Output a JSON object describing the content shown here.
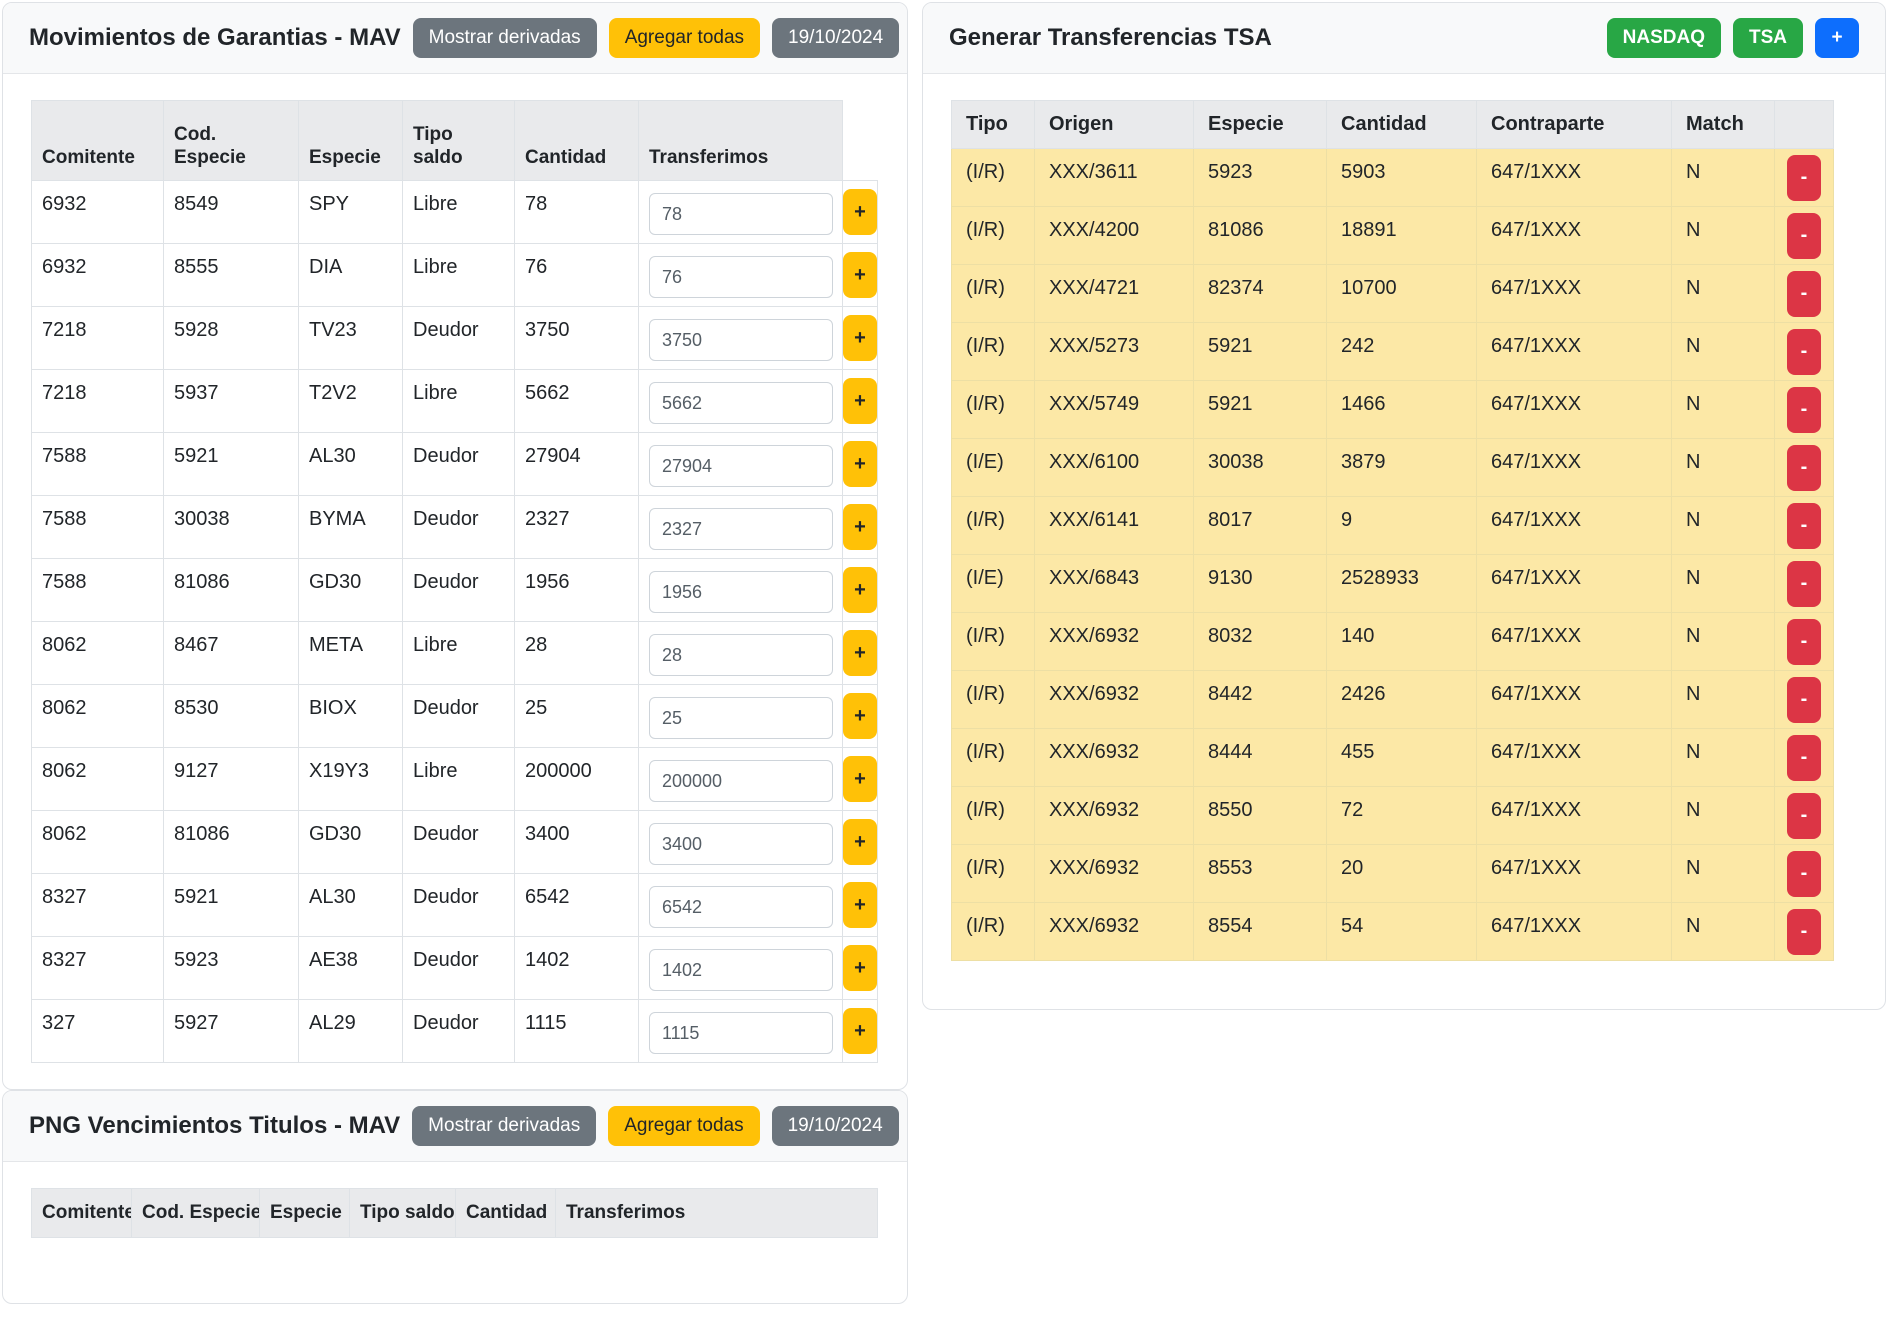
{
  "left_panel": {
    "title": "Movimientos de Garantias - MAV",
    "buttons": {
      "mostrar_derivadas": "Mostrar derivadas",
      "agregar_todas": "Agregar todas",
      "date": "19/10/2024"
    },
    "table": {
      "headers": [
        "Comitente",
        "Cod. Especie",
        "Especie",
        "Tipo saldo",
        "Cantidad",
        "Transferimos"
      ],
      "add_label": "+",
      "rows": [
        {
          "comitente": "6932",
          "cod_especie": "8549",
          "especie": "SPY",
          "tipo_saldo": "Libre",
          "cantidad": "78",
          "transferimos": "78"
        },
        {
          "comitente": "6932",
          "cod_especie": "8555",
          "especie": "DIA",
          "tipo_saldo": "Libre",
          "cantidad": "76",
          "transferimos": "76"
        },
        {
          "comitente": "7218",
          "cod_especie": "5928",
          "especie": "TV23",
          "tipo_saldo": "Deudor",
          "cantidad": "3750",
          "transferimos": "3750"
        },
        {
          "comitente": "7218",
          "cod_especie": "5937",
          "especie": "T2V2",
          "tipo_saldo": "Libre",
          "cantidad": "5662",
          "transferimos": "5662"
        },
        {
          "comitente": "7588",
          "cod_especie": "5921",
          "especie": "AL30",
          "tipo_saldo": "Deudor",
          "cantidad": "27904",
          "transferimos": "27904"
        },
        {
          "comitente": "7588",
          "cod_especie": "30038",
          "especie": "BYMA",
          "tipo_saldo": "Deudor",
          "cantidad": "2327",
          "transferimos": "2327"
        },
        {
          "comitente": "7588",
          "cod_especie": "81086",
          "especie": "GD30",
          "tipo_saldo": "Deudor",
          "cantidad": "1956",
          "transferimos": "1956"
        },
        {
          "comitente": "8062",
          "cod_especie": "8467",
          "especie": "META",
          "tipo_saldo": "Libre",
          "cantidad": "28",
          "transferimos": "28"
        },
        {
          "comitente": "8062",
          "cod_especie": "8530",
          "especie": "BIOX",
          "tipo_saldo": "Deudor",
          "cantidad": "25",
          "transferimos": "25"
        },
        {
          "comitente": "8062",
          "cod_especie": "9127",
          "especie": "X19Y3",
          "tipo_saldo": "Libre",
          "cantidad": "200000",
          "transferimos": "200000"
        },
        {
          "comitente": "8062",
          "cod_especie": "81086",
          "especie": "GD30",
          "tipo_saldo": "Deudor",
          "cantidad": "3400",
          "transferimos": "3400"
        },
        {
          "comitente": "8327",
          "cod_especie": "5921",
          "especie": "AL30",
          "tipo_saldo": "Deudor",
          "cantidad": "6542",
          "transferimos": "6542"
        },
        {
          "comitente": "8327",
          "cod_especie": "5923",
          "especie": "AE38",
          "tipo_saldo": "Deudor",
          "cantidad": "1402",
          "transferimos": "1402"
        },
        {
          "comitente": "327",
          "cod_especie": "5927",
          "especie": "AL29",
          "tipo_saldo": "Deudor",
          "cantidad": "1115",
          "transferimos": "1115"
        }
      ]
    }
  },
  "bottom_panel": {
    "title": "PNG Vencimientos Titulos - MAV",
    "buttons": {
      "mostrar_derivadas": "Mostrar derivadas",
      "agregar_todas": "Agregar todas",
      "date": "19/10/2024"
    },
    "table": {
      "headers": [
        "Comitente",
        "Cod. Especie",
        "Especie",
        "Tipo saldo",
        "Cantidad",
        "Transferimos"
      ],
      "rows": []
    }
  },
  "right_panel": {
    "title": "Generar Transferencias TSA",
    "buttons": {
      "nasdaq": "NASDAQ",
      "tsa": "TSA",
      "add": "+"
    },
    "table": {
      "headers": [
        "Tipo",
        "Origen",
        "Especie",
        "Cantidad",
        "Contraparte",
        "Match"
      ],
      "remove_label": "-",
      "rows": [
        {
          "tipo": "(I/R)",
          "origen": "XXX/3611",
          "especie": "5923",
          "cantidad": "5903",
          "contraparte": "647/1XXX",
          "match": "N"
        },
        {
          "tipo": "(I/R)",
          "origen": "XXX/4200",
          "especie": "81086",
          "cantidad": "18891",
          "contraparte": "647/1XXX",
          "match": "N"
        },
        {
          "tipo": "(I/R)",
          "origen": "XXX/4721",
          "especie": "82374",
          "cantidad": "10700",
          "contraparte": "647/1XXX",
          "match": "N"
        },
        {
          "tipo": "(I/R)",
          "origen": "XXX/5273",
          "especie": "5921",
          "cantidad": "242",
          "contraparte": "647/1XXX",
          "match": "N"
        },
        {
          "tipo": "(I/R)",
          "origen": "XXX/5749",
          "especie": "5921",
          "cantidad": "1466",
          "contraparte": "647/1XXX",
          "match": "N"
        },
        {
          "tipo": "(I/E)",
          "origen": "XXX/6100",
          "especie": "30038",
          "cantidad": "3879",
          "contraparte": "647/1XXX",
          "match": "N"
        },
        {
          "tipo": "(I/R)",
          "origen": "XXX/6141",
          "especie": "8017",
          "cantidad": "9",
          "contraparte": "647/1XXX",
          "match": "N"
        },
        {
          "tipo": "(I/E)",
          "origen": "XXX/6843",
          "especie": "9130",
          "cantidad": "2528933",
          "contraparte": "647/1XXX",
          "match": "N"
        },
        {
          "tipo": "(I/R)",
          "origen": "XXX/6932",
          "especie": "8032",
          "cantidad": "140",
          "contraparte": "647/1XXX",
          "match": "N"
        },
        {
          "tipo": "(I/R)",
          "origen": "XXX/6932",
          "especie": "8442",
          "cantidad": "2426",
          "contraparte": "647/1XXX",
          "match": "N"
        },
        {
          "tipo": "(I/R)",
          "origen": "XXX/6932",
          "especie": "8444",
          "cantidad": "455",
          "contraparte": "647/1XXX",
          "match": "N"
        },
        {
          "tipo": "(I/R)",
          "origen": "XXX/6932",
          "especie": "8550",
          "cantidad": "72",
          "contraparte": "647/1XXX",
          "match": "N"
        },
        {
          "tipo": "(I/R)",
          "origen": "XXX/6932",
          "especie": "8553",
          "cantidad": "20",
          "contraparte": "647/1XXX",
          "match": "N"
        },
        {
          "tipo": "(I/R)",
          "origen": "XXX/6932",
          "especie": "8554",
          "cantidad": "54",
          "contraparte": "647/1XXX",
          "match": "N"
        }
      ]
    }
  },
  "colors": {
    "accent_yellow": "#ffc107",
    "secondary_gray": "#6c757d",
    "success_green": "#28a745",
    "primary_blue": "#0d6efd",
    "danger_red": "#dc3545",
    "row_highlight": "#fce8a6",
    "header_gray": "#e9eaec"
  }
}
